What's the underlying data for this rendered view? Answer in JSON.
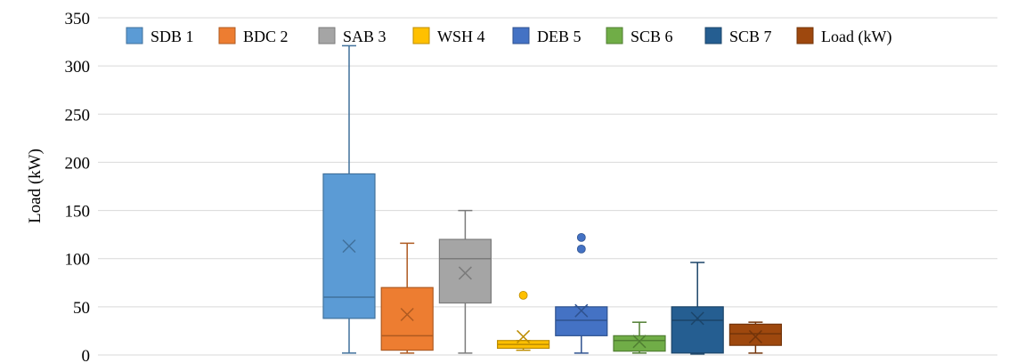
{
  "chart_data": {
    "type": "box",
    "title": "",
    "xlabel": "",
    "ylabel": "Load (kW)",
    "ylim": [
      0,
      350
    ],
    "yticks": [
      "0",
      "50",
      "100",
      "150",
      "200",
      "250",
      "300",
      "350"
    ],
    "grid": true,
    "legend_position": "top",
    "series": [
      {
        "name": "SDB 1",
        "color": "#5b9bd5",
        "stroke": "#41719c",
        "min": 2,
        "q1": 38,
        "median": 60,
        "q3": 188,
        "max": 321,
        "mean": 113,
        "outliers": []
      },
      {
        "name": "BDC 2",
        "color": "#ed7d31",
        "stroke": "#ae5a21",
        "min": 2,
        "q1": 5,
        "median": 20,
        "q3": 70,
        "max": 116,
        "mean": 42,
        "outliers": []
      },
      {
        "name": "SAB 3",
        "color": "#a5a5a5",
        "stroke": "#7b7b7b",
        "min": 2,
        "q1": 54,
        "median": 100,
        "q3": 120,
        "max": 150,
        "mean": 85,
        "outliers": []
      },
      {
        "name": "WSH 4",
        "color": "#ffc000",
        "stroke": "#bc8c00",
        "min": 5,
        "q1": 7,
        "median": 11,
        "q3": 15,
        "max": 15,
        "mean": 19,
        "outliers": [
          62
        ]
      },
      {
        "name": "DEB 5",
        "color": "#4472c4",
        "stroke": "#2f528f",
        "min": 2,
        "q1": 20,
        "median": 36,
        "q3": 50,
        "max": 50,
        "mean": 46,
        "outliers": [
          110,
          122
        ]
      },
      {
        "name": "SCB 6",
        "color": "#70ad47",
        "stroke": "#507e32",
        "min": 2,
        "q1": 4,
        "median": 15,
        "q3": 20,
        "max": 34,
        "mean": 14,
        "outliers": []
      },
      {
        "name": "SCB 7",
        "color": "#255e91",
        "stroke": "#1b4469",
        "min": 1,
        "q1": 2,
        "median": 36,
        "q3": 50,
        "max": 96,
        "mean": 38,
        "outliers": []
      },
      {
        "name": "Load (kW)",
        "color": "#9e480e",
        "stroke": "#73340a",
        "min": 2,
        "q1": 10,
        "median": 22,
        "q3": 32,
        "max": 34,
        "mean": 19,
        "outliers": []
      }
    ]
  }
}
